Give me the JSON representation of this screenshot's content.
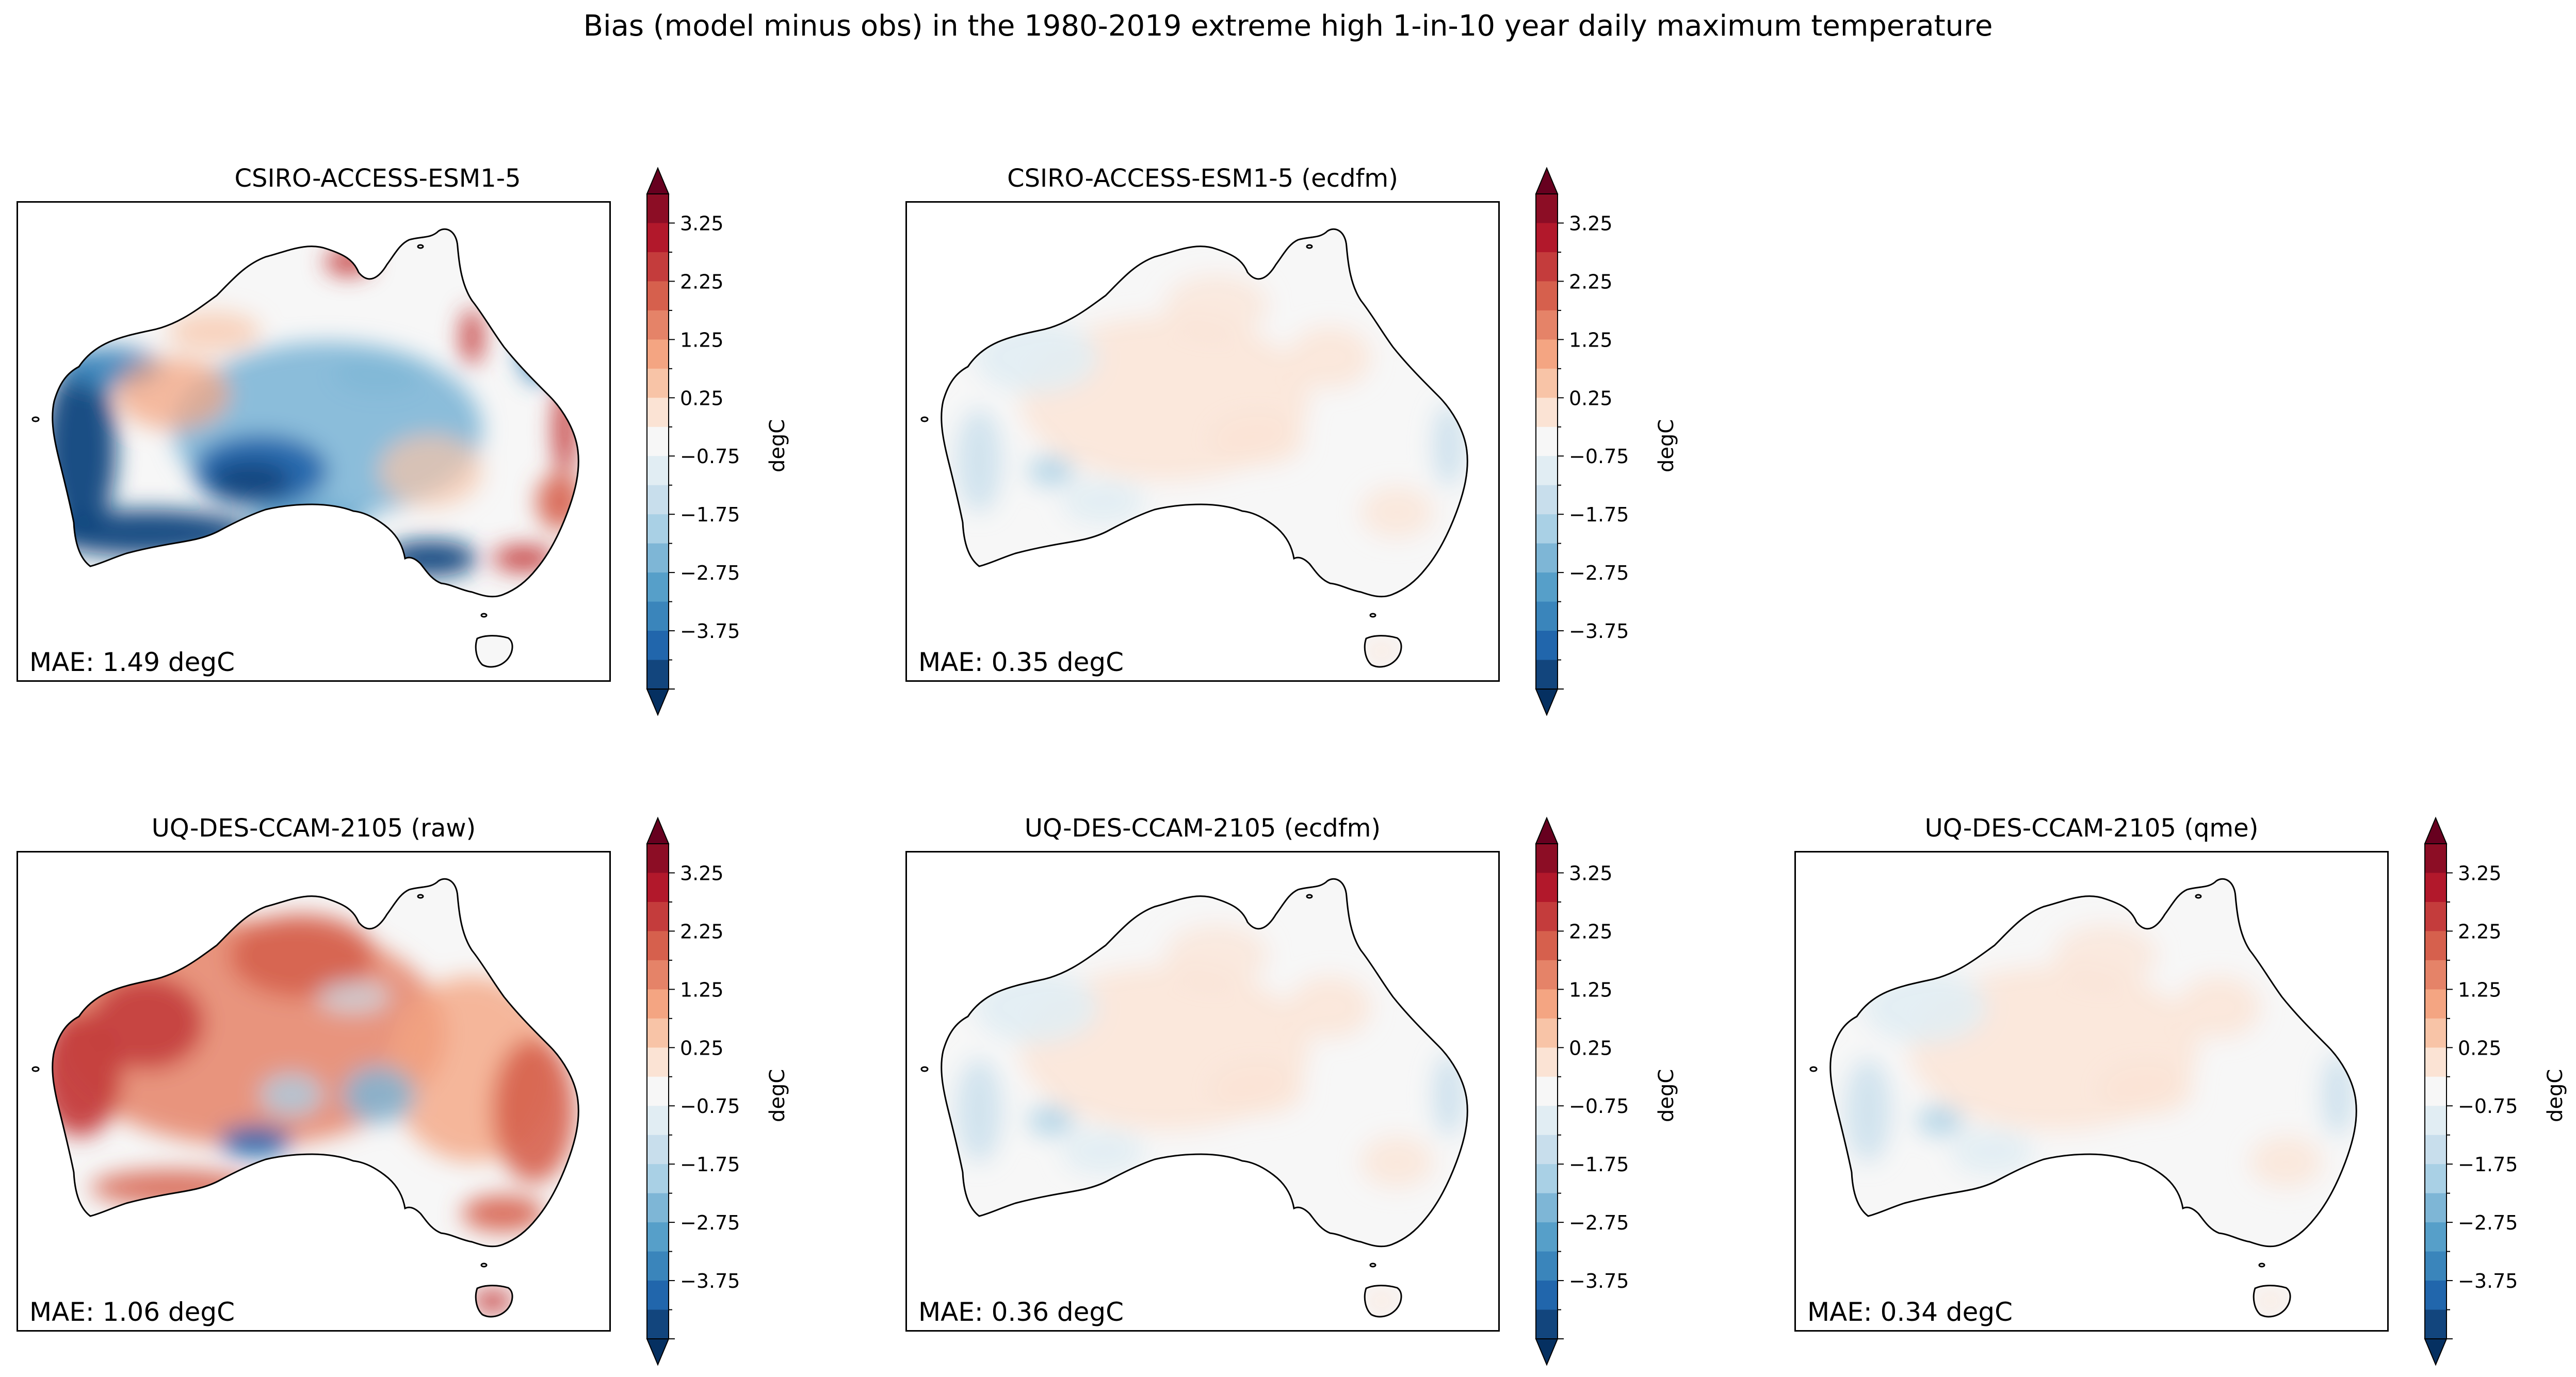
{
  "figure": {
    "title": "Bias (model minus obs) in the 1980-2019 extreme high 1-in-10 year daily maximum temperature"
  },
  "colorbar": {
    "label": "degC",
    "tick_labels": [
      "3.25",
      "2.25",
      "1.25",
      "0.25",
      "−0.75",
      "−1.75",
      "−2.75",
      "−3.75"
    ],
    "colors": [
      "#67001f",
      "#8c0d25",
      "#b2182b",
      "#c43c3c",
      "#d6604d",
      "#e58368",
      "#f4a582",
      "#f8c4a7",
      "#fbe3d4",
      "#f7f7f7",
      "#e1edf3",
      "#c8deec",
      "#a9d0e5",
      "#7eb6d6",
      "#569fc9",
      "#3a85bb",
      "#2166ac",
      "#12457d",
      "#053061"
    ]
  },
  "chart_data": {
    "type": "heatmap",
    "title": "Bias (model minus obs) in the 1980-2019 extreme high 1-in-10 year daily maximum temperature",
    "color_scale": {
      "label": "degC",
      "levels_min": -3.75,
      "levels_max": 3.75,
      "level_step": 0.5,
      "ticks": [
        3.25,
        2.25,
        1.25,
        0.25,
        -0.75,
        -1.75,
        -2.75,
        -3.75
      ],
      "extend": "both",
      "colormap": "RdBu_r"
    },
    "panels": [
      {
        "title": "CSIRO-ACCESS-ESM1-5",
        "mae_text": "MAE: 1.49 degC",
        "mae": 1.49,
        "units": "degC",
        "pattern": "strong"
      },
      {
        "title": "CSIRO-ACCESS-ESM1-5 (ecdfm)",
        "mae_text": "MAE: 0.35 degC",
        "mae": 0.35,
        "units": "degC",
        "pattern": "weak"
      },
      {
        "title": "UQ-DES-CCAM-2105 (raw)",
        "mae_text": "MAE: 1.06 degC",
        "mae": 1.06,
        "units": "degC",
        "pattern": "warm"
      },
      {
        "title": "UQ-DES-CCAM-2105 (ecdfm)",
        "mae_text": "MAE: 0.36 degC",
        "mae": 0.36,
        "units": "degC",
        "pattern": "weak"
      },
      {
        "title": "UQ-DES-CCAM-2105 (qme)",
        "mae_text": "MAE: 0.34 degC",
        "mae": 0.34,
        "units": "degC",
        "pattern": "weak"
      }
    ]
  }
}
